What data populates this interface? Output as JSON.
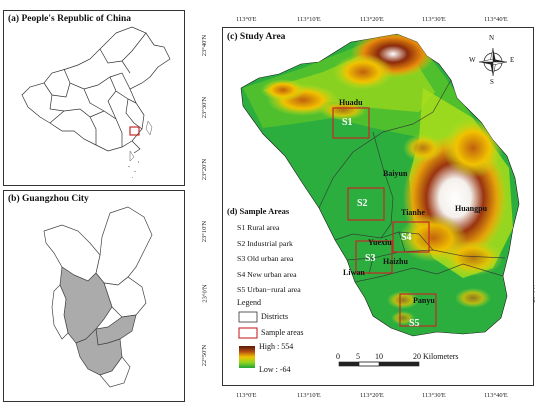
{
  "panels": {
    "a_title": "(a) People's Republic of China",
    "b_title": "(b) Guangzhou City",
    "c_title": "(c) Study Area",
    "d_title": "(d) Sample Areas"
  },
  "top_ticks": [
    "113°0'E",
    "113°10'E",
    "113°20'E",
    "113°30'E",
    "113°40'E"
  ],
  "bottom_ticks": [
    "113°0'E",
    "113°10'E",
    "113°20'E",
    "113°30'E",
    "113°40'E"
  ],
  "left_ticks": [
    "23°40'N",
    "23°30'N",
    "23°20'N",
    "23°10'N",
    "23°0'N",
    "22°50'N"
  ],
  "right_ticks": [
    "23°40'N",
    "23°30'N",
    "23°20'N",
    "23°10'N",
    "23°0'N",
    "22°50'N"
  ],
  "place_labels": {
    "huadu": "Huadu",
    "baiyun": "Baiyun",
    "huangpu": "Huangpu",
    "tianhe": "Tianhe",
    "yuexiu": "Yuexiu",
    "haizhu": "Haizhu",
    "liwan": "Liwan",
    "panyu": "Panyu"
  },
  "sample_codes": [
    "S1",
    "S2",
    "S3",
    "S4",
    "S5"
  ],
  "sample_areas": [
    "S1 Rural area",
    "S2 Industrial park",
    "S3 Old urban area",
    "S4 New urban area",
    "S5 Urban−rural area"
  ],
  "legend": {
    "title": "Legend",
    "districts": "Districts",
    "sample_areas": "Sample areas",
    "high": "High : 554",
    "low": "Low : -64"
  },
  "compass": {
    "n": "N",
    "s": "S",
    "e": "E",
    "w": "W"
  },
  "scale_bar": {
    "labels": [
      "0",
      "5",
      "10",
      "20 Kilometers"
    ]
  },
  "colors": {
    "sample_box": "#c62828",
    "elev_low": "#1fa33a",
    "elev_mid": "#f2c200",
    "elev_high": "#8b2a0c",
    "elev_peak": "#ffffff"
  }
}
